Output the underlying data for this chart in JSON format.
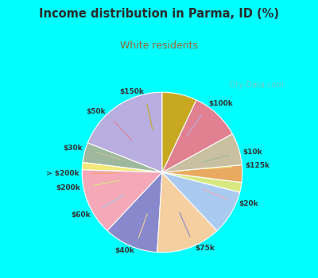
{
  "title": "Income distribution in Parma, ID (%)",
  "subtitle": "White residents",
  "title_color": "#2a2a2a",
  "subtitle_color": "#996633",
  "bg_cyan": "#00ffff",
  "bg_box": "#e8f5ee",
  "labels": [
    "$100k",
    "$10k",
    "$125k",
    "$20k",
    "$75k",
    "$40k",
    "$60k",
    "$200k",
    "> $200k",
    "$30k",
    "$50k",
    "$150k"
  ],
  "values": [
    19.0,
    4.0,
    1.5,
    13.5,
    11.0,
    13.0,
    9.0,
    2.0,
    3.5,
    6.5,
    10.0,
    7.0
  ],
  "colors": [
    "#b8aee0",
    "#9db89d",
    "#f5e87a",
    "#f4a8b8",
    "#8888cc",
    "#f5cfa0",
    "#aacaf0",
    "#d8e880",
    "#e8aa60",
    "#c8c0a0",
    "#e08090",
    "#c8a820"
  ],
  "startangle": 90,
  "watermark": "City-Data.com"
}
